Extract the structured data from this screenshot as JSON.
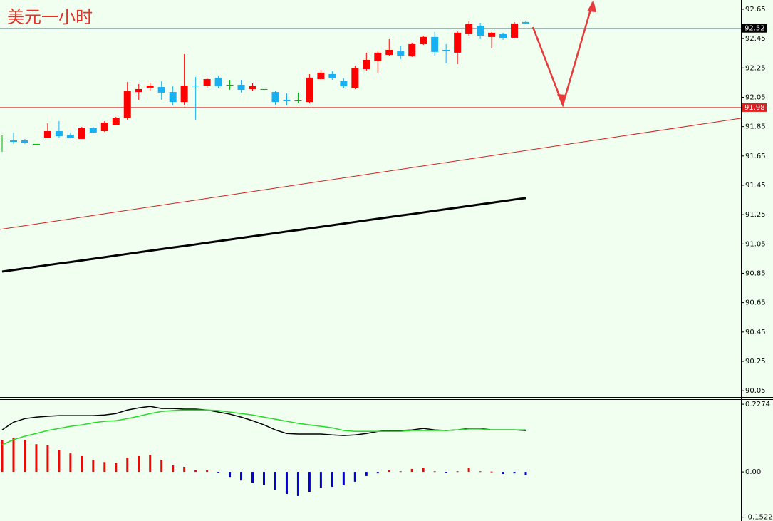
{
  "chart_data": [
    {
      "type": "candlestick",
      "title": "美元一小时",
      "title_color": "#e8302a",
      "up_color": "#ff0000",
      "down_color": "#1ab0f0",
      "doji_color": "#00b000",
      "open": [
        91.775,
        91.756,
        91.756,
        91.732,
        91.775,
        91.819,
        91.795,
        91.766,
        91.839,
        91.819,
        91.863,
        91.911,
        92.086,
        92.116,
        92.12,
        92.086,
        92.018,
        92.13,
        92.13,
        92.184,
        92.135,
        92.135,
        92.106,
        92.106,
        92.086,
        92.033,
        92.028,
        92.018,
        92.174,
        92.208,
        92.159,
        92.111,
        92.242,
        92.295,
        92.339,
        92.363,
        92.329,
        92.412,
        92.461,
        92.373,
        92.354,
        92.48,
        92.538,
        92.461,
        92.48,
        92.456,
        92.563
      ],
      "high": [
        91.79,
        91.809,
        91.766,
        91.732,
        91.873,
        91.887,
        91.809,
        91.848,
        91.848,
        91.887,
        91.916,
        92.154,
        92.14,
        92.15,
        92.159,
        92.125,
        92.344,
        92.188,
        92.184,
        92.198,
        92.169,
        92.169,
        92.145,
        92.111,
        92.091,
        92.077,
        92.082,
        92.208,
        92.237,
        92.227,
        92.179,
        92.266,
        92.354,
        92.363,
        92.446,
        92.402,
        92.422,
        92.47,
        92.495,
        92.412,
        92.499,
        92.567,
        92.558,
        92.495,
        92.49,
        92.563,
        92.572
      ],
      "low": [
        91.678,
        91.732,
        91.732,
        91.732,
        91.775,
        91.775,
        91.771,
        91.766,
        91.805,
        91.814,
        91.858,
        91.897,
        92.033,
        92.091,
        92.033,
        91.994,
        91.999,
        91.897,
        92.111,
        92.111,
        92.101,
        92.082,
        92.091,
        92.106,
        91.999,
        91.994,
        92.009,
        92.009,
        92.169,
        92.169,
        92.111,
        92.106,
        92.232,
        92.218,
        92.334,
        92.31,
        92.325,
        92.407,
        92.334,
        92.281,
        92.276,
        92.47,
        92.446,
        92.383,
        92.441,
        92.451,
        92.548
      ],
      "close": [
        91.775,
        91.746,
        91.741,
        91.732,
        91.819,
        91.785,
        91.775,
        91.839,
        91.809,
        91.877,
        91.911,
        92.091,
        92.106,
        92.13,
        92.082,
        92.018,
        92.13,
        92.125,
        92.174,
        92.125,
        92.135,
        92.101,
        92.125,
        92.106,
        92.018,
        92.023,
        92.028,
        92.184,
        92.218,
        92.179,
        92.125,
        92.247,
        92.305,
        92.354,
        92.373,
        92.334,
        92.412,
        92.461,
        92.359,
        92.363,
        92.49,
        92.548,
        92.47,
        92.49,
        92.451,
        92.553,
        92.553
      ],
      "series": [
        {
          "color": "#000000",
          "values": [
            90.862,
            90.873,
            90.884,
            90.895,
            90.906,
            90.917,
            90.927,
            90.938,
            90.949,
            90.96,
            90.971,
            90.982,
            90.993,
            91.004,
            91.015,
            91.026,
            91.036,
            91.047,
            91.058,
            91.069,
            91.08,
            91.091,
            91.102,
            91.113,
            91.124,
            91.135,
            91.145,
            91.156,
            91.167,
            91.178,
            91.189,
            91.2,
            91.211,
            91.222,
            91.233,
            91.244,
            91.254,
            91.265,
            91.276,
            91.287,
            91.298,
            91.309,
            91.32,
            91.331,
            91.342,
            91.353,
            91.363
          ]
        }
      ],
      "trendline": {
        "values": [
          91.149,
          91.907
        ],
        "color": "#d42020"
      },
      "hlines": [
        {
          "value": 92.52,
          "color": "#6b9fd8",
          "label_bg": "#000000"
        },
        {
          "value": 91.98,
          "color": "#e02020",
          "label_bg": "#e02020"
        }
      ],
      "ylim": [
        90.007,
        92.713
      ],
      "yticks": [
        92.65,
        92.45,
        92.25,
        92.05,
        91.85,
        91.65,
        91.45,
        91.25,
        91.05,
        90.85,
        90.65,
        90.45,
        90.25,
        90.05
      ]
    },
    {
      "type": "macd",
      "up_color": "#ff0000",
      "down_color": "#0000e0",
      "values": [
        0.108,
        0.115,
        0.108,
        0.093,
        0.089,
        0.074,
        0.062,
        0.053,
        0.041,
        0.033,
        0.031,
        0.048,
        0.053,
        0.057,
        0.041,
        0.022,
        0.017,
        0.007,
        0.005,
        -0.002,
        -0.017,
        -0.029,
        -0.036,
        -0.043,
        -0.062,
        -0.074,
        -0.081,
        -0.067,
        -0.053,
        -0.05,
        -0.045,
        -0.033,
        -0.014,
        -0.005,
        0.005,
        0.002,
        0.01,
        0.014,
        0.002,
        -0.002,
        0.002,
        0.014,
        0.002,
        0.001,
        -0.007,
        -0.005,
        -0.01
      ],
      "series": [
        {
          "color": "#000000",
          "values": [
            0.141,
            0.167,
            0.179,
            0.184,
            0.187,
            0.189,
            0.189,
            0.189,
            0.189,
            0.191,
            0.196,
            0.208,
            0.215,
            0.22,
            0.213,
            0.213,
            0.211,
            0.211,
            0.208,
            0.201,
            0.194,
            0.184,
            0.172,
            0.158,
            0.141,
            0.129,
            0.127,
            0.127,
            0.127,
            0.124,
            0.122,
            0.124,
            0.129,
            0.136,
            0.139,
            0.139,
            0.141,
            0.146,
            0.141,
            0.139,
            0.141,
            0.146,
            0.146,
            0.141,
            0.141,
            0.141,
            0.139
          ]
        },
        {
          "color": "#22dd22",
          "values": [
            0.091,
            0.108,
            0.12,
            0.129,
            0.139,
            0.146,
            0.153,
            0.158,
            0.165,
            0.17,
            0.172,
            0.179,
            0.187,
            0.196,
            0.203,
            0.206,
            0.208,
            0.208,
            0.208,
            0.206,
            0.201,
            0.196,
            0.191,
            0.184,
            0.177,
            0.17,
            0.163,
            0.158,
            0.153,
            0.148,
            0.139,
            0.136,
            0.136,
            0.136,
            0.136,
            0.136,
            0.139,
            0.139,
            0.139,
            0.139,
            0.141,
            0.144,
            0.144,
            0.141,
            0.141,
            0.141,
            0.141
          ]
        }
      ],
      "ylim": [
        -0.165,
        0.242
      ],
      "yticks": [
        0.2274,
        {
          "value": 0,
          "label": "0.00"
        },
        -0.1522
      ]
    }
  ]
}
